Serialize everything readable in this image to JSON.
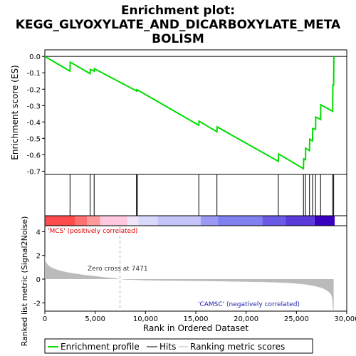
{
  "title_lines": [
    "Enrichment plot:",
    "KEGG_GLYOXYLATE_AND_DICARBOXYLATE_META",
    "BOLISM"
  ],
  "colors": {
    "es_line": "#00dd00",
    "hits": "#000000",
    "metric_fill": "#bbbbbb",
    "pos_label": "#dd0000",
    "neg_label": "#2222aa",
    "zero_cross": "#aaaaaa"
  },
  "chart_data": [
    {
      "type": "line",
      "panel": "enrichment",
      "ylabel": "Enrichment score (ES)",
      "xlim": [
        0,
        30000
      ],
      "ylim": [
        -0.72,
        0.04
      ],
      "yticks": [
        0.0,
        -0.1,
        -0.2,
        -0.3,
        -0.4,
        -0.5,
        -0.6,
        -0.7
      ],
      "ytick_labels": [
        "0.0",
        "-0.1",
        "-0.2",
        "-0.3",
        "-0.4",
        "-0.5",
        "-0.6",
        "-0.7"
      ],
      "series": [
        {
          "x": [
            0,
            2500,
            2520,
            4500,
            4520,
            4900,
            4920,
            9100,
            9120,
            9200,
            9220,
            15300,
            15320,
            17100,
            17120,
            23200,
            23220,
            25700,
            25720,
            25900,
            25920,
            26300,
            26320,
            26600,
            26620,
            26900,
            26920,
            27400,
            27420,
            28600,
            28620,
            28700,
            28720
          ],
          "y": [
            0.0,
            -0.09,
            -0.035,
            -0.105,
            -0.08,
            -0.09,
            -0.075,
            -0.21,
            -0.205,
            -0.21,
            -0.205,
            -0.42,
            -0.395,
            -0.46,
            -0.43,
            -0.64,
            -0.595,
            -0.685,
            -0.625,
            -0.63,
            -0.56,
            -0.575,
            -0.505,
            -0.515,
            -0.44,
            -0.445,
            -0.37,
            -0.385,
            -0.295,
            -0.335,
            -0.175,
            -0.175,
            0.0
          ]
        }
      ]
    },
    {
      "type": "hits",
      "panel": "hits",
      "x": [
        2500,
        4500,
        4900,
        9100,
        9200,
        15300,
        17100,
        23200,
        25700,
        25900,
        26300,
        26600,
        26900,
        27400,
        28600,
        28700
      ]
    },
    {
      "type": "heatmap",
      "panel": "rank-colorbar",
      "segments": [
        {
          "from": 0,
          "to": 3000,
          "color": "#ff4b4b"
        },
        {
          "from": 3000,
          "to": 4200,
          "color": "#ff7070"
        },
        {
          "from": 4200,
          "to": 5500,
          "color": "#ff9a9a"
        },
        {
          "from": 5500,
          "to": 8200,
          "color": "#ffc8de"
        },
        {
          "from": 8200,
          "to": 9300,
          "color": "#f0e6f8"
        },
        {
          "from": 9300,
          "to": 11200,
          "color": "#d8d8fb"
        },
        {
          "from": 11200,
          "to": 15500,
          "color": "#c4c4f8"
        },
        {
          "from": 15500,
          "to": 17200,
          "color": "#9a9af5"
        },
        {
          "from": 17200,
          "to": 21600,
          "color": "#8080f0"
        },
        {
          "from": 21600,
          "to": 23900,
          "color": "#6a5ae6"
        },
        {
          "from": 23900,
          "to": 26800,
          "color": "#5a3ad8"
        },
        {
          "from": 26800,
          "to": 28800,
          "color": "#3a00c0"
        }
      ]
    },
    {
      "type": "area",
      "panel": "ranked-metric",
      "xlabel": "Rank in Ordered Dataset",
      "ylabel": "Ranked list metric (Signal2Noise)",
      "xlim": [
        0,
        30000
      ],
      "ylim": [
        -2.7,
        4.5
      ],
      "yticks": [
        4,
        2,
        0,
        -2
      ],
      "ytick_labels": [
        "4",
        "2",
        "0",
        "-2"
      ],
      "xticks": [
        0,
        5000,
        10000,
        15000,
        20000,
        25000,
        30000
      ],
      "xtick_labels": [
        "0",
        "5,000",
        "10,000",
        "15,000",
        "20,000",
        "25,000",
        "30,000"
      ],
      "zero_cross_x": 7471,
      "x": [
        0,
        50,
        150,
        300,
        600,
        1000,
        1500,
        2000,
        3000,
        4000,
        5000,
        6000,
        7000,
        7471,
        8000,
        9000,
        10000,
        12000,
        14000,
        16000,
        18000,
        20000,
        22000,
        24000,
        25000,
        26000,
        26800,
        27400,
        27800,
        28100,
        28300,
        28450,
        28550,
        28650,
        28700
      ],
      "values": [
        2.0,
        1.6,
        1.4,
        1.2,
        1.0,
        0.85,
        0.72,
        0.62,
        0.47,
        0.35,
        0.25,
        0.15,
        0.07,
        0.0,
        -0.04,
        -0.08,
        -0.1,
        -0.13,
        -0.15,
        -0.17,
        -0.19,
        -0.22,
        -0.26,
        -0.32,
        -0.38,
        -0.46,
        -0.58,
        -0.72,
        -0.86,
        -1.0,
        -1.15,
        -1.3,
        -1.6,
        -2.6,
        -2.6
      ]
    }
  ],
  "annotations": {
    "pos_label": "'MCS' (positively correlated)",
    "neg_label": "'CAMSC' (negatively correlated)",
    "zero_cross": "Zero cross at 7471"
  },
  "legend": {
    "items": [
      {
        "label": "Enrichment profile",
        "kind": "line",
        "color": "#00dd00"
      },
      {
        "label": "Hits",
        "kind": "line",
        "color": "#000000"
      },
      {
        "label": "Ranking metric scores",
        "kind": "line",
        "color": "#bbbbbb"
      }
    ]
  }
}
